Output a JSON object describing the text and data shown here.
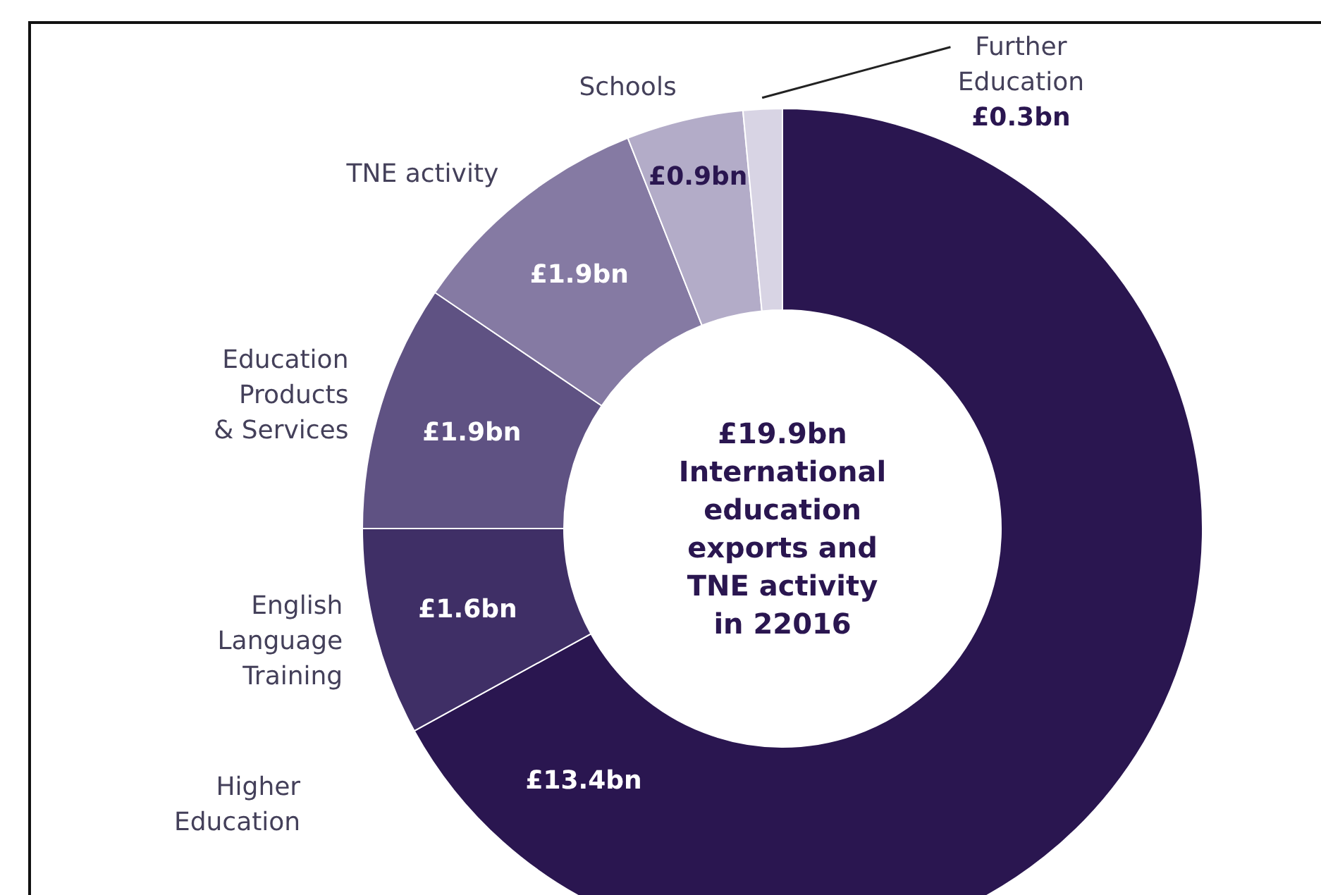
{
  "chart_data": {
    "type": "donut",
    "categories": [
      "Higher\nEducation",
      "English\nLanguage\nTraining",
      "Education\nProducts\n& Services",
      "TNE activity",
      "Schools",
      "Further\nEducation"
    ],
    "values": [
      13.4,
      1.6,
      1.9,
      1.9,
      0.9,
      0.3
    ],
    "value_labels": [
      "£13.4bn",
      "£1.6bn",
      "£1.9bn",
      "£1.9bn",
      "£0.9bn",
      "£0.3bn"
    ],
    "colors": [
      "#2a1650",
      "#3f2f66",
      "#5f5283",
      "#857aa3",
      "#b3acc8",
      "#d8d4e4"
    ],
    "annotations": [
      "£19.9bn\nInternational\neducation\nexports and\nTNE activity\nin 22016"
    ],
    "legend": false
  }
}
